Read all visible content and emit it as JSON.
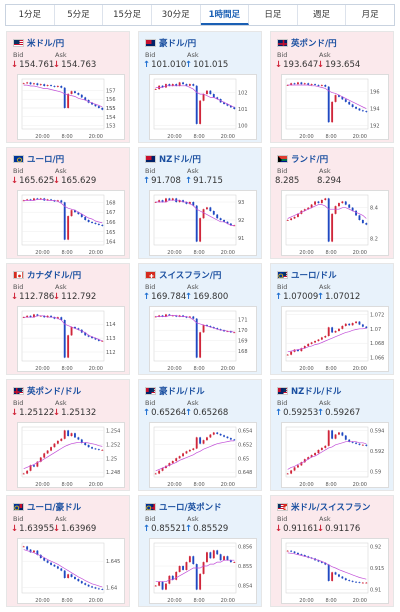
{
  "tabs": [
    {
      "label": "1分足",
      "active": false
    },
    {
      "label": "5分足",
      "active": false
    },
    {
      "label": "15分足",
      "active": false
    },
    {
      "label": "30分足",
      "active": false
    },
    {
      "label": "1時間足",
      "active": true
    },
    {
      "label": "日足",
      "active": false
    },
    {
      "label": "週足",
      "active": false
    },
    {
      "label": "月足",
      "active": false
    }
  ],
  "labels": {
    "bid": "Bid",
    "ask": "Ask"
  },
  "colors": {
    "down_arrow": "#d0263a",
    "up_arrow": "#1f6fd1",
    "candle_up": "#d0263a",
    "candle_down": "#1f49c2",
    "ma_line": "#c24fd8"
  },
  "cards": [
    {
      "name": "米ドル/円",
      "flag": "us",
      "direction": "down",
      "bid": "154.761",
      "ask": "154.763",
      "chart": {
        "type": "candlestick",
        "x_labels": [
          "20:00",
          "8:00",
          "20:00"
        ],
        "y_labels": [
          "155",
          "157",
          "156",
          "155",
          "154",
          "153"
        ],
        "close": [
          157.8,
          157.9,
          157.7,
          157.8,
          157.6,
          157.7,
          157.5,
          157.6,
          157.5,
          157.4,
          157.5,
          157.3,
          155.0,
          156.6,
          156.9,
          156.7,
          156.5,
          156.2,
          155.9,
          155.6,
          155.4,
          155.2,
          155.0,
          154.8
        ],
        "ma": [
          157.6,
          157.6,
          157.5,
          157.5,
          157.4,
          157.3,
          157.2,
          157.2,
          157.1,
          157.0,
          156.9,
          156.8,
          156.6,
          156.5,
          156.4,
          156.3,
          156.1,
          156.0,
          155.9,
          155.7,
          155.6,
          155.4,
          155.3,
          155.1
        ]
      }
    },
    {
      "name": "豪ドル/円",
      "flag": "au",
      "direction": "up",
      "bid": "101.010",
      "ask": "101.015",
      "chart": {
        "type": "candlestick",
        "x_labels": [
          "20:00",
          "8:00",
          "20:00"
        ],
        "y_labels": [
          "102",
          "101",
          "100"
        ],
        "close": [
          102.2,
          102.4,
          102.3,
          102.5,
          102.4,
          102.5,
          102.4,
          102.6,
          102.5,
          102.4,
          102.5,
          102.4,
          100.1,
          101.5,
          101.9,
          102.1,
          101.9,
          101.7,
          101.6,
          101.4,
          101.3,
          101.2,
          101.1,
          101.0
        ],
        "ma": [
          102.3,
          102.3,
          102.3,
          102.4,
          102.4,
          102.4,
          102.4,
          102.4,
          102.4,
          102.4,
          102.3,
          102.2,
          102.0,
          101.9,
          101.9,
          101.8,
          101.7,
          101.7,
          101.6,
          101.5,
          101.4,
          101.3,
          101.2,
          101.1
        ]
      }
    },
    {
      "name": "英ポンド/円",
      "flag": "uk",
      "direction": "down",
      "bid": "193.647",
      "ask": "193.654",
      "chart": {
        "type": "candlestick",
        "x_labels": [
          "20:00",
          "8:00",
          "20:00"
        ],
        "y_labels": [
          "196",
          "194",
          "192"
        ],
        "close": [
          196.8,
          197.0,
          196.9,
          197.1,
          196.9,
          197.0,
          196.8,
          196.9,
          196.8,
          196.7,
          196.8,
          196.6,
          192.4,
          194.8,
          195.6,
          195.4,
          195.1,
          194.8,
          194.5,
          194.2,
          194.0,
          193.8,
          193.7,
          193.6
        ],
        "ma": [
          196.8,
          196.8,
          196.8,
          196.8,
          196.8,
          196.8,
          196.8,
          196.7,
          196.7,
          196.6,
          196.5,
          196.4,
          196.1,
          195.9,
          195.8,
          195.6,
          195.4,
          195.2,
          195.0,
          194.8,
          194.6,
          194.4,
          194.2,
          194.0
        ]
      }
    },
    {
      "name": "ユーロ/円",
      "flag": "eu",
      "direction": "down",
      "bid": "165.625",
      "ask": "165.629",
      "chart": {
        "type": "candlestick",
        "x_labels": [
          "20:00",
          "8:00",
          "20:00"
        ],
        "y_labels": [
          "168",
          "167",
          "166",
          "165",
          "164"
        ],
        "close": [
          168.2,
          168.3,
          168.2,
          168.4,
          168.3,
          168.4,
          168.2,
          168.3,
          168.2,
          168.1,
          168.2,
          168.0,
          164.2,
          166.6,
          167.2,
          167.0,
          166.8,
          166.5,
          166.2,
          166.0,
          165.9,
          165.8,
          165.7,
          165.6
        ],
        "ma": [
          168.2,
          168.2,
          168.2,
          168.2,
          168.3,
          168.3,
          168.3,
          168.2,
          168.2,
          168.2,
          168.1,
          167.9,
          167.6,
          167.4,
          167.3,
          167.2,
          167.0,
          166.8,
          166.6,
          166.4,
          166.3,
          166.1,
          166.0,
          165.9
        ]
      }
    },
    {
      "name": "NZドル/円",
      "flag": "nz",
      "direction": "up",
      "bid": "91.708",
      "ask": "91.715",
      "chart": {
        "type": "candlestick",
        "x_labels": [
          "20:00",
          "8:00",
          "20:00"
        ],
        "y_labels": [
          "93",
          "92",
          "91"
        ],
        "close": [
          93.0,
          93.1,
          93.0,
          93.2,
          93.1,
          93.2,
          93.0,
          93.1,
          93.0,
          92.9,
          93.0,
          92.8,
          90.8,
          92.1,
          92.6,
          92.7,
          92.5,
          92.3,
          92.1,
          92.0,
          91.9,
          91.8,
          91.7,
          91.7
        ],
        "ma": [
          93.0,
          93.0,
          93.0,
          93.0,
          93.1,
          93.1,
          93.1,
          93.1,
          93.0,
          93.0,
          92.9,
          92.8,
          92.6,
          92.5,
          92.4,
          92.3,
          92.2,
          92.1,
          92.0,
          91.9,
          91.9,
          91.8,
          91.7,
          91.7
        ]
      }
    },
    {
      "name": "ランド/円",
      "flag": "za",
      "direction": "none",
      "bid": "8.285",
      "ask": "8.294",
      "chart": {
        "type": "candlestick",
        "x_labels": [
          "20:00",
          "8:00",
          "20:00"
        ],
        "y_labels": [
          "8.4",
          "8.2"
        ],
        "close": [
          8.32,
          8.33,
          8.34,
          8.36,
          8.38,
          8.39,
          8.4,
          8.42,
          8.44,
          8.43,
          8.45,
          8.46,
          8.18,
          8.36,
          8.41,
          8.43,
          8.44,
          8.42,
          8.4,
          8.38,
          8.35,
          8.32,
          8.3,
          8.29
        ],
        "ma": [
          8.33,
          8.34,
          8.35,
          8.36,
          8.37,
          8.38,
          8.39,
          8.4,
          8.41,
          8.42,
          8.42,
          8.41,
          8.39,
          8.39,
          8.39,
          8.39,
          8.4,
          8.4,
          8.39,
          8.38,
          8.37,
          8.36,
          8.35,
          8.33
        ]
      }
    },
    {
      "name": "カナダドル/円",
      "flag": "ca",
      "direction": "down",
      "bid": "112.786",
      "ask": "112.792",
      "chart": {
        "type": "candlestick",
        "x_labels": [
          "20:00",
          "8:00",
          "20:00"
        ],
        "y_labels": [
          "114",
          "113",
          "112"
        ],
        "close": [
          114.5,
          114.6,
          114.5,
          114.7,
          114.6,
          114.6,
          114.5,
          114.6,
          114.5,
          114.4,
          114.5,
          114.3,
          111.6,
          113.2,
          113.8,
          113.7,
          113.6,
          113.4,
          113.2,
          113.1,
          113.0,
          112.9,
          112.8,
          112.8
        ],
        "ma": [
          114.5,
          114.5,
          114.5,
          114.5,
          114.6,
          114.6,
          114.6,
          114.5,
          114.5,
          114.5,
          114.4,
          114.3,
          114.0,
          113.9,
          113.8,
          113.7,
          113.6,
          113.5,
          113.4,
          113.2,
          113.1,
          113.0,
          112.9,
          112.8
        ]
      }
    },
    {
      "name": "スイスフラン/円",
      "flag": "ch",
      "direction": "up",
      "bid": "169.784",
      "ask": "169.800",
      "chart": {
        "type": "candlestick",
        "x_labels": [
          "20:00",
          "8:00",
          "20:00"
        ],
        "y_labels": [
          "171",
          "170",
          "169",
          "168"
        ],
        "close": [
          171.3,
          171.4,
          171.3,
          171.5,
          171.4,
          171.4,
          171.3,
          171.4,
          171.3,
          171.2,
          171.3,
          171.1,
          167.4,
          169.8,
          170.5,
          170.4,
          170.3,
          170.2,
          170.1,
          170.0,
          169.9,
          169.9,
          169.8,
          169.8
        ],
        "ma": [
          171.3,
          171.3,
          171.3,
          171.3,
          171.4,
          171.4,
          171.4,
          171.3,
          171.3,
          171.3,
          171.2,
          171.0,
          170.7,
          170.6,
          170.5,
          170.4,
          170.3,
          170.2,
          170.1,
          170.0,
          170.0,
          169.9,
          169.9,
          169.8
        ]
      }
    },
    {
      "name": "ユーロ/ドル",
      "flag": "eu-us",
      "direction": "up",
      "bid": "1.07009",
      "ask": "1.07012",
      "chart": {
        "type": "candlestick",
        "x_labels": [
          "20:00",
          "8:00",
          "20:00"
        ],
        "y_labels": [
          "1.072",
          "1.07",
          "1.068",
          "1.066"
        ],
        "close": [
          1.0664,
          1.0668,
          1.0671,
          1.0669,
          1.0673,
          1.0676,
          1.0679,
          1.0681,
          1.0683,
          1.0685,
          1.0688,
          1.069,
          1.0702,
          1.0695,
          1.0697,
          1.07,
          1.0704,
          1.0707,
          1.0705,
          1.0708,
          1.071,
          1.0706,
          1.0703,
          1.0701
        ],
        "ma": [
          1.0668,
          1.0669,
          1.067,
          1.0671,
          1.0672,
          1.0673,
          1.0675,
          1.0676,
          1.0678,
          1.0679,
          1.0681,
          1.0683,
          1.0685,
          1.0687,
          1.0689,
          1.0691,
          1.0693,
          1.0695,
          1.0696,
          1.0698,
          1.0699,
          1.07,
          1.07,
          1.0701
        ]
      }
    },
    {
      "name": "英ポンド/ドル",
      "flag": "uk-us",
      "direction": "down",
      "bid": "1.25122",
      "ask": "1.25132",
      "chart": {
        "type": "candlestick",
        "x_labels": [
          "20:00",
          "8:00",
          "20:00"
        ],
        "y_labels": [
          "1.254",
          "1.252",
          "1.25",
          "1.248"
        ],
        "close": [
          1.2478,
          1.2482,
          1.249,
          1.2488,
          1.2495,
          1.2501,
          1.2507,
          1.2511,
          1.2516,
          1.2521,
          1.2525,
          1.2528,
          1.254,
          1.2532,
          1.2536,
          1.253,
          1.2527,
          1.2522,
          1.2519,
          1.2516,
          1.2514,
          1.2513,
          1.2512,
          1.2512
        ],
        "ma": [
          1.2485,
          1.2487,
          1.2489,
          1.2491,
          1.2494,
          1.2496,
          1.2499,
          1.2502,
          1.2505,
          1.2508,
          1.2511,
          1.2514,
          1.2517,
          1.2519,
          1.2521,
          1.2522,
          1.2523,
          1.2523,
          1.2523,
          1.2522,
          1.2521,
          1.252,
          1.2518,
          1.2517
        ]
      }
    },
    {
      "name": "豪ドル/ドル",
      "flag": "au-us",
      "direction": "up",
      "bid": "0.65264",
      "ask": "0.65268",
      "chart": {
        "type": "candlestick",
        "x_labels": [
          "20:00",
          "8:00",
          "20:00"
        ],
        "y_labels": [
          "0.654",
          "0.652",
          "0.65",
          "0.648"
        ],
        "close": [
          0.6478,
          0.6482,
          0.6486,
          0.6489,
          0.6493,
          0.6496,
          0.65,
          0.6503,
          0.6507,
          0.651,
          0.6512,
          0.6514,
          0.653,
          0.6521,
          0.6526,
          0.653,
          0.6534,
          0.6537,
          0.6535,
          0.6533,
          0.6531,
          0.6529,
          0.6527,
          0.6526
        ],
        "ma": [
          0.6482,
          0.6484,
          0.6486,
          0.6488,
          0.649,
          0.6492,
          0.6494,
          0.6497,
          0.6499,
          0.6501,
          0.6503,
          0.6505,
          0.6508,
          0.651,
          0.6513,
          0.6515,
          0.6517,
          0.6519,
          0.6521,
          0.6522,
          0.6523,
          0.6524,
          0.6525,
          0.6525
        ]
      }
    },
    {
      "name": "NZドル/ドル",
      "flag": "nz-us",
      "direction": "up",
      "bid": "0.59253",
      "ask": "0.59267",
      "chart": {
        "type": "candlestick",
        "x_labels": [
          "20:00",
          "8:00",
          "20:00"
        ],
        "y_labels": [
          "0.594",
          "0.592",
          "0.59"
        ],
        "close": [
          0.5898,
          0.5901,
          0.5904,
          0.5906,
          0.5909,
          0.5912,
          0.5914,
          0.5916,
          0.5918,
          0.5921,
          0.5923,
          0.5925,
          0.594,
          0.5932,
          0.5936,
          0.5938,
          0.5935,
          0.5931,
          0.5929,
          0.5928,
          0.5927,
          0.5926,
          0.5926,
          0.5925
        ],
        "ma": [
          0.5902,
          0.5904,
          0.5905,
          0.5907,
          0.5908,
          0.591,
          0.5912,
          0.5914,
          0.5915,
          0.5917,
          0.5919,
          0.5921,
          0.5923,
          0.5924,
          0.5926,
          0.5927,
          0.5928,
          0.5929,
          0.5929,
          0.5929,
          0.5929,
          0.5928,
          0.5928,
          0.5927
        ]
      }
    },
    {
      "name": "ユーロ/豪ドル",
      "flag": "eu-au",
      "direction": "down",
      "bid": "1.63955",
      "ask": "1.63969",
      "chart": {
        "type": "candlestick",
        "x_labels": [
          "20:00",
          "8:00",
          "20:00"
        ],
        "y_labels": [
          "1.645",
          "1.64"
        ],
        "close": [
          1.6478,
          1.6472,
          1.6467,
          1.647,
          1.6462,
          1.6456,
          1.6451,
          1.6447,
          1.6443,
          1.644,
          1.6436,
          1.6432,
          1.6418,
          1.6425,
          1.642,
          1.6416,
          1.6412,
          1.6408,
          1.6405,
          1.6402,
          1.64,
          1.6398,
          1.6397,
          1.6396
        ],
        "ma": [
          1.6472,
          1.647,
          1.6468,
          1.6466,
          1.6463,
          1.646,
          1.6457,
          1.6453,
          1.645,
          1.6447,
          1.6444,
          1.644,
          1.6436,
          1.6432,
          1.6428,
          1.6424,
          1.642,
          1.6417,
          1.6413,
          1.641,
          1.6407,
          1.6405,
          1.6403,
          1.6401
        ]
      }
    },
    {
      "name": "ユーロ/英ポンド",
      "flag": "eu-uk",
      "direction": "up",
      "bid": "0.85521",
      "ask": "0.85529",
      "chart": {
        "type": "candlestick",
        "x_labels": [
          "20:00",
          "8:00",
          "20:00"
        ],
        "y_labels": [
          "0.856",
          "0.855",
          "0.854"
        ],
        "close": [
          0.854,
          0.8542,
          0.8538,
          0.8541,
          0.8545,
          0.8543,
          0.8547,
          0.855,
          0.8548,
          0.8552,
          0.8555,
          0.8551,
          0.8538,
          0.8546,
          0.8552,
          0.8557,
          0.8554,
          0.8558,
          0.8556,
          0.8553,
          0.8555,
          0.8553,
          0.8552,
          0.8552
        ],
        "ma": [
          0.8542,
          0.8542,
          0.8542,
          0.8542,
          0.8543,
          0.8543,
          0.8544,
          0.8545,
          0.8546,
          0.8547,
          0.8548,
          0.8549,
          0.8549,
          0.8549,
          0.855,
          0.855,
          0.8551,
          0.8551,
          0.8552,
          0.8552,
          0.8553,
          0.8553,
          0.8553,
          0.8553
        ]
      }
    },
    {
      "name": "米ドル/スイスフラン",
      "flag": "us-ch",
      "direction": "down",
      "bid": "0.91161",
      "ask": "0.91176",
      "chart": {
        "type": "candlestick",
        "x_labels": [
          "20:00",
          "8:00",
          "20:00"
        ],
        "y_labels": [
          "0.92",
          "0.915",
          "0.91"
        ],
        "close": [
          0.919,
          0.9188,
          0.9185,
          0.9182,
          0.918,
          0.9177,
          0.9174,
          0.9172,
          0.9168,
          0.9165,
          0.9162,
          0.9158,
          0.912,
          0.914,
          0.9135,
          0.913,
          0.9126,
          0.9122,
          0.912,
          0.9118,
          0.9117,
          0.9116,
          0.9116,
          0.9116
        ],
        "ma": [
          0.9185,
          0.9184,
          0.9183,
          0.9181,
          0.9179,
          0.9177,
          0.9175,
          0.9173,
          0.917,
          0.9168,
          0.9165,
          0.9162,
          0.9157,
          0.9153,
          0.915,
          0.9146,
          0.9143,
          0.914,
          0.9137,
          0.9134,
          0.9131,
          0.9128,
          0.9126,
          0.9124
        ]
      }
    }
  ]
}
